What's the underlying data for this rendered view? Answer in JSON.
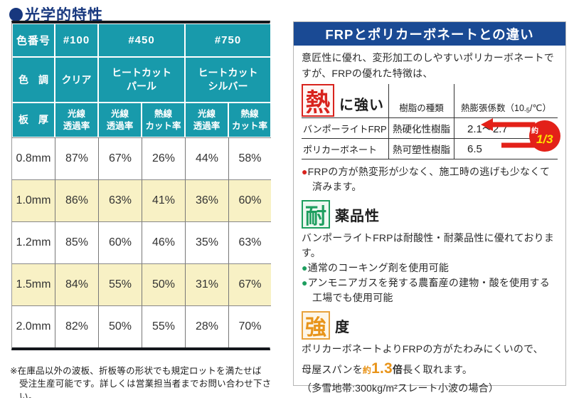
{
  "colors": {
    "title_navy": "#17377e",
    "table_header_teal": "#189aab",
    "highlight_yellow": "#f8f1c5",
    "panel_header_blue": "#1a4a94",
    "heat_red": "#d8231d",
    "chemical_green": "#1e9e5f",
    "strength_orange": "#e8941a",
    "badge_red": "#e32119",
    "badge_yellow": "#ffe100"
  },
  "optical": {
    "bullet": "●",
    "title": "光学的特性",
    "table": {
      "header": {
        "color_number": {
          "label": "色番号",
          "cells": [
            "#100",
            "#450",
            "#750"
          ]
        },
        "color_tone": {
          "label": "色　調",
          "cells": [
            {
              "line1": "クリア",
              "line2": ""
            },
            {
              "line1": "ヒートカット",
              "line2": "パール"
            },
            {
              "line1": "ヒートカット",
              "line2": "シルバー"
            }
          ]
        },
        "measures": {
          "label": "板　厚",
          "cells": [
            {
              "line1": "光線",
              "line2": "透過率"
            },
            {
              "line1": "光線",
              "line2": "透過率"
            },
            {
              "line1": "熱線",
              "line2": "カット率"
            },
            {
              "line1": "光線",
              "line2": "透過率"
            },
            {
              "line1": "熱線",
              "line2": "カット率"
            }
          ]
        }
      },
      "rows": [
        {
          "thickness": "0.8mm",
          "values": [
            "87%",
            "67%",
            "26%",
            "44%",
            "58%"
          ],
          "highlight": false
        },
        {
          "thickness": "1.0mm",
          "values": [
            "86%",
            "63%",
            "41%",
            "36%",
            "60%"
          ],
          "highlight": true
        },
        {
          "thickness": "1.2mm",
          "values": [
            "85%",
            "60%",
            "46%",
            "35%",
            "63%"
          ],
          "highlight": false
        },
        {
          "thickness": "1.5mm",
          "values": [
            "84%",
            "55%",
            "50%",
            "31%",
            "67%"
          ],
          "highlight": true
        },
        {
          "thickness": "2.0mm",
          "values": [
            "82%",
            "50%",
            "55%",
            "28%",
            "70%"
          ],
          "highlight": false
        }
      ],
      "footnote": {
        "line1": "※在庫品以外の波板、折板等の形状でも規定ロットを満たせば",
        "line2": "受注生産可能です。詳しくは営業担当者までお問い合わせ下さい。"
      }
    }
  },
  "comparison": {
    "title": "FRPとポリカーボネートとの違い",
    "intro": "意匠性に優れ、変形加工のしやすいポリカーボネートですが、FRPの優れた特徴は、",
    "heat": {
      "kanji": "熱",
      "suffix": "に強い",
      "col_resin": "樹脂の種類",
      "col_coef_pre": "熱膨張係数（10",
      "col_coef_sup": "-5",
      "col_coef_post": "/℃）",
      "rows": [
        {
          "name": "バンポーライトFRP",
          "resin": "熱硬化性樹脂",
          "coef": "2.1～2.7"
        },
        {
          "name": "ポリカーボネート",
          "resin": "熱可塑性樹脂",
          "coef": "6.5"
        }
      ],
      "badge_small": "約",
      "badge_big": "1/3",
      "bullet": "●",
      "note": "FRPの方が熱変形が少なく、施工時の逃げも少なくて済みます。"
    },
    "chemical": {
      "kanji": "耐",
      "suffix": "薬品性",
      "body": "バンポーライトFRPは耐酸性・耐薬品性に優れております。",
      "bullet": "●",
      "bullets": [
        "通常のコーキング剤を使用可能",
        "アンモニアガスを発する農畜産の建物・酸を使用する工場でも使用可能"
      ]
    },
    "strength": {
      "kanji": "強",
      "suffix": "度",
      "line1": "ポリカーボネートよりFRPの方がたわみにくいので、",
      "line2_pre": "母屋スパンを",
      "line2_approx": "約",
      "line2_num": "1.3",
      "line2_unit": "倍",
      "line2_post": "長く取れます。",
      "line3": "（多雪地帯:300kg/m²スレート小波の場合）"
    }
  }
}
